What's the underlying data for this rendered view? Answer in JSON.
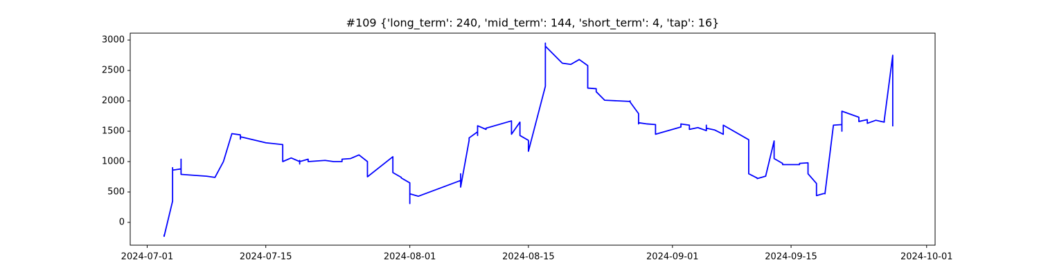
{
  "chart_data": {
    "type": "line",
    "title": "#109 {'long_term': 240, 'mid_term': 144, 'short_term': 4, 'tap': 16}",
    "color": "#0000ff",
    "x": [
      "2024-07-03",
      "2024-07-03",
      "2024-07-04",
      "2024-07-04",
      "2024-07-04",
      "2024-07-05",
      "2024-07-05",
      "2024-07-05",
      "2024-07-05",
      "2024-07-05",
      "2024-07-08",
      "2024-07-09",
      "2024-07-10",
      "2024-07-10",
      "2024-07-11",
      "2024-07-12",
      "2024-07-12",
      "2024-07-12",
      "2024-07-15",
      "2024-07-17",
      "2024-07-17",
      "2024-07-17",
      "2024-07-18",
      "2024-07-19",
      "2024-07-19",
      "2024-07-19",
      "2024-07-19",
      "2024-07-19",
      "2024-07-20",
      "2024-07-20",
      "2024-07-22",
      "2024-07-23",
      "2024-07-24",
      "2024-07-24",
      "2024-07-25",
      "2024-07-26",
      "2024-07-27",
      "2024-07-27",
      "2024-07-27",
      "2024-07-30",
      "2024-07-30",
      "2024-07-30",
      "2024-07-30",
      "2024-07-31",
      "2024-07-31",
      "2024-08-01",
      "2024-08-01",
      "2024-08-01",
      "2024-08-01",
      "2024-08-01",
      "2024-08-01",
      "2024-08-02",
      "2024-08-07",
      "2024-08-07",
      "2024-08-07",
      "2024-08-07",
      "2024-08-08",
      "2024-08-08",
      "2024-08-09",
      "2024-08-09",
      "2024-08-09",
      "2024-08-10",
      "2024-08-10",
      "2024-08-13",
      "2024-08-13",
      "2024-08-14",
      "2024-08-14",
      "2024-08-15",
      "2024-08-15",
      "2024-08-17",
      "2024-08-17",
      "2024-08-17",
      "2024-08-17",
      "2024-08-19",
      "2024-08-20",
      "2024-08-21",
      "2024-08-21",
      "2024-08-22",
      "2024-08-22",
      "2024-08-22",
      "2024-08-23",
      "2024-08-23",
      "2024-08-24",
      "2024-08-27",
      "2024-08-27",
      "2024-08-27",
      "2024-08-28",
      "2024-08-28",
      "2024-08-28",
      "2024-08-29",
      "2024-08-30",
      "2024-08-30",
      "2024-08-30",
      "2024-08-30",
      "2024-09-02",
      "2024-09-02",
      "2024-09-03",
      "2024-09-03",
      "2024-09-04",
      "2024-09-05",
      "2024-09-05",
      "2024-09-05",
      "2024-09-05",
      "2024-09-06",
      "2024-09-07",
      "2024-09-07",
      "2024-09-10",
      "2024-09-10",
      "2024-09-10",
      "2024-09-11",
      "2024-09-11",
      "2024-09-12",
      "2024-09-13",
      "2024-09-13",
      "2024-09-13",
      "2024-09-13",
      "2024-09-14",
      "2024-09-14",
      "2024-09-16",
      "2024-09-16",
      "2024-09-17",
      "2024-09-17",
      "2024-09-18",
      "2024-09-18",
      "2024-09-18",
      "2024-09-19",
      "2024-09-19",
      "2024-09-20",
      "2024-09-21",
      "2024-09-21",
      "2024-09-21",
      "2024-09-21",
      "2024-09-23",
      "2024-09-23",
      "2024-09-24",
      "2024-09-24",
      "2024-09-25",
      "2024-09-26",
      "2024-09-26",
      "2024-09-27",
      "2024-09-27"
    ],
    "values": [
      -200,
      -230,
      350,
      900,
      860,
      880,
      950,
      1040,
      1000,
      790,
      760,
      740,
      1000,
      1000,
      1460,
      1440,
      1370,
      1410,
      1310,
      1280,
      1260,
      1000,
      1060,
      1000,
      960,
      1000,
      1020,
      1000,
      1040,
      1000,
      1020,
      1000,
      1000,
      1040,
      1050,
      1110,
      1000,
      880,
      750,
      1080,
      960,
      860,
      820,
      740,
      730,
      650,
      620,
      500,
      310,
      350,
      470,
      430,
      690,
      800,
      600,
      580,
      1350,
      1390,
      1490,
      1430,
      1590,
      1530,
      1550,
      1670,
      1450,
      1650,
      1430,
      1350,
      1170,
      2240,
      2950,
      2850,
      2900,
      2620,
      2600,
      2680,
      2680,
      2580,
      2300,
      2210,
      2200,
      2150,
      2010,
      1990,
      2000,
      1980,
      1790,
      1620,
      1640,
      1620,
      1610,
      1570,
      1520,
      1450,
      1570,
      1620,
      1600,
      1530,
      1560,
      1510,
      1580,
      1600,
      1550,
      1520,
      1450,
      1600,
      1360,
      1150,
      800,
      730,
      720,
      760,
      1340,
      1250,
      1240,
      1050,
      970,
      950,
      950,
      970,
      980,
      800,
      640,
      560,
      440,
      480,
      470,
      1600,
      1610,
      1500,
      1700,
      1830,
      1730,
      1660,
      1690,
      1630,
      1680,
      1650,
      1680,
      2750,
      1580
    ],
    "xlim": [
      "2024-06-29",
      "2024-10-02"
    ],
    "xticks": [
      "2024-07-01",
      "2024-07-15",
      "2024-08-01",
      "2024-08-15",
      "2024-09-01",
      "2024-09-15",
      "2024-10-01"
    ],
    "ylim": [
      -375,
      3114
    ],
    "yticks": [
      0,
      500,
      1000,
      1500,
      2000,
      2500,
      3000
    ]
  }
}
